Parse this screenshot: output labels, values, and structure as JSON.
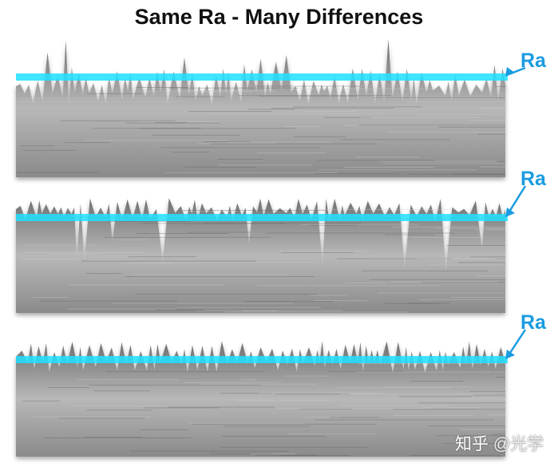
{
  "title": "Same Ra - Many Differences",
  "panels": [
    {
      "label": "Ra",
      "profile": "peaks"
    },
    {
      "label": "Ra",
      "profile": "valleys"
    },
    {
      "label": "Ra",
      "profile": "uniform"
    }
  ],
  "watermark": {
    "brand": "知乎",
    "handle": "@光学"
  },
  "colors": {
    "mean_line": "#1ee0ff",
    "label": "#1a9be0",
    "metal_dark": "#707070",
    "metal_light": "#bdbdbd"
  }
}
